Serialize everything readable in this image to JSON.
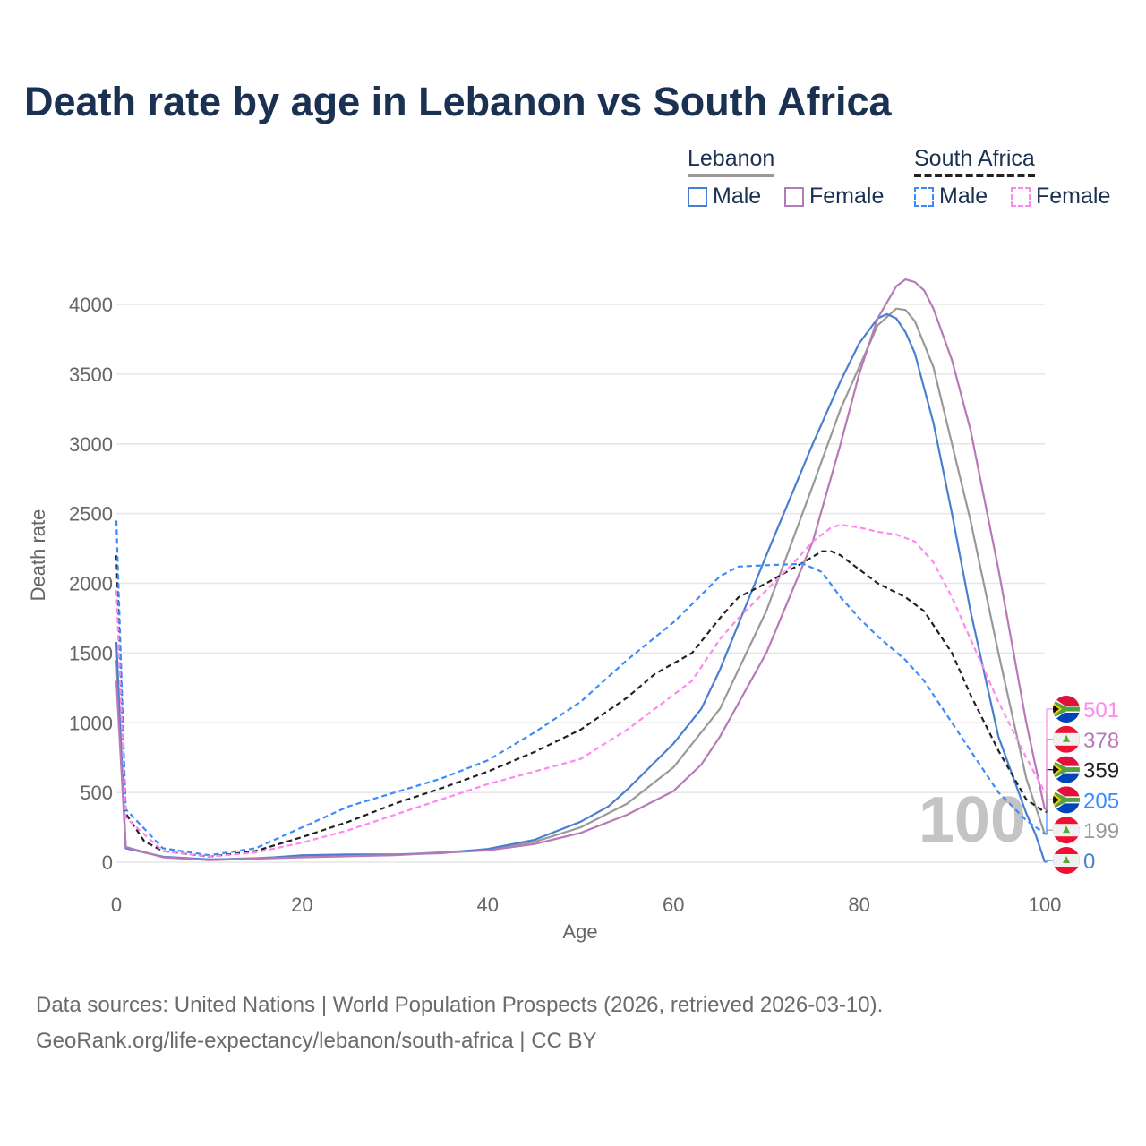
{
  "title": "Death rate by age in Lebanon vs South Africa",
  "legend": {
    "countries": [
      {
        "name": "Lebanon",
        "style": "solid",
        "color": "#999999"
      },
      {
        "name": "South Africa",
        "style": "dashed",
        "color": "#222222"
      }
    ],
    "items": [
      {
        "label": "Male",
        "country": "Lebanon",
        "color": "#4a7fd0",
        "style": "solid"
      },
      {
        "label": "Female",
        "country": "Lebanon",
        "color": "#b77ab7",
        "style": "solid"
      },
      {
        "label": "Male",
        "country": "South Africa",
        "color": "#3b8bff",
        "style": "dashed"
      },
      {
        "label": "Female",
        "country": "South Africa",
        "color": "#ff88ee",
        "style": "dashed"
      }
    ]
  },
  "footer": {
    "line1": "Data sources: United Nations | World Population Prospects (2026, retrieved 2026-03-10).",
    "line2": "GeoRank.org/life-expectancy/lebanon/south-africa | CC BY"
  },
  "chart_data": {
    "type": "line",
    "xlabel": "Age",
    "ylabel": "Death rate",
    "xlim": [
      0,
      100
    ],
    "ylim": [
      0,
      4000
    ],
    "xticks": [
      0,
      20,
      40,
      60,
      80,
      100
    ],
    "yticks": [
      0,
      500,
      1000,
      1500,
      2000,
      2500,
      3000,
      3500,
      4000
    ],
    "grid": true,
    "current_age_label": "100",
    "series": [
      {
        "name": "Lebanon Total",
        "country": "Lebanon",
        "flag": "lebanon",
        "color": "#999999",
        "dashed": false,
        "end_label": "199",
        "x": [
          0,
          1,
          5,
          10,
          20,
          30,
          40,
          45,
          50,
          55,
          60,
          65,
          70,
          75,
          78,
          80,
          82,
          84,
          85,
          86,
          88,
          90,
          92,
          95,
          98,
          100
        ],
        "y": [
          1450,
          105,
          38,
          18,
          42,
          52,
          90,
          145,
          250,
          420,
          680,
          1100,
          1800,
          2700,
          3250,
          3550,
          3850,
          3970,
          3960,
          3880,
          3550,
          3000,
          2450,
          1500,
          600,
          199
        ]
      },
      {
        "name": "Lebanon Male",
        "country": "Lebanon",
        "flag": "lebanon",
        "color": "#4a7fd0",
        "dashed": false,
        "end_label": "0",
        "x": [
          0,
          1,
          5,
          10,
          15,
          20,
          25,
          30,
          35,
          40,
          45,
          50,
          53,
          55,
          60,
          63,
          65,
          70,
          75,
          78,
          80,
          82,
          83,
          84,
          85,
          86,
          88,
          90,
          92,
          95,
          98,
          99,
          100
        ],
        "y": [
          1580,
          100,
          40,
          20,
          25,
          50,
          55,
          55,
          65,
          95,
          160,
          290,
          400,
          520,
          850,
          1100,
          1380,
          2200,
          3000,
          3450,
          3720,
          3900,
          3930,
          3900,
          3800,
          3650,
          3150,
          2500,
          1800,
          900,
          350,
          200,
          0
        ]
      },
      {
        "name": "Lebanon Female",
        "country": "Lebanon",
        "flag": "lebanon",
        "color": "#b77ab7",
        "dashed": false,
        "end_label": "378",
        "x": [
          0,
          1,
          5,
          10,
          20,
          30,
          40,
          45,
          50,
          55,
          60,
          63,
          65,
          70,
          75,
          78,
          80,
          82,
          84,
          85,
          86,
          87,
          88,
          90,
          92,
          95,
          98,
          100
        ],
        "y": [
          1300,
          110,
          35,
          15,
          35,
          50,
          85,
          130,
          210,
          340,
          510,
          700,
          900,
          1500,
          2300,
          3000,
          3500,
          3900,
          4130,
          4180,
          4160,
          4100,
          3970,
          3600,
          3100,
          2100,
          1000,
          378
        ]
      },
      {
        "name": "South Africa Total",
        "country": "South Africa",
        "flag": "south-africa",
        "color": "#222222",
        "dashed": true,
        "end_label": "359",
        "x": [
          0,
          1,
          3,
          5,
          10,
          15,
          20,
          25,
          30,
          35,
          40,
          45,
          50,
          55,
          58,
          62,
          65,
          67,
          70,
          74,
          76,
          77,
          78,
          80,
          82,
          85,
          87,
          90,
          92,
          95,
          98,
          100
        ],
        "y": [
          2200,
          350,
          150,
          80,
          40,
          80,
          180,
          290,
          420,
          530,
          650,
          790,
          950,
          1180,
          1350,
          1500,
          1750,
          1900,
          2000,
          2150,
          2230,
          2230,
          2200,
          2100,
          2000,
          1900,
          1800,
          1500,
          1200,
          800,
          450,
          359
        ]
      },
      {
        "name": "South Africa Male",
        "country": "South Africa",
        "flag": "south-africa",
        "color": "#3b8bff",
        "dashed": true,
        "end_label": "205",
        "x": [
          0,
          1,
          5,
          10,
          15,
          20,
          25,
          30,
          35,
          40,
          45,
          50,
          55,
          60,
          62,
          65,
          67,
          70,
          74,
          76,
          78,
          80,
          82,
          85,
          87,
          90,
          92,
          95,
          98,
          100
        ],
        "y": [
          2450,
          380,
          100,
          50,
          100,
          250,
          400,
          500,
          600,
          730,
          930,
          1150,
          1450,
          1720,
          1850,
          2050,
          2120,
          2130,
          2140,
          2080,
          1900,
          1750,
          1620,
          1450,
          1300,
          1000,
          800,
          500,
          300,
          205
        ]
      },
      {
        "name": "South Africa Female",
        "country": "South Africa",
        "flag": "south-africa",
        "color": "#ff88ee",
        "dashed": true,
        "end_label": "501",
        "x": [
          0,
          1,
          5,
          10,
          15,
          20,
          25,
          30,
          35,
          40,
          45,
          50,
          55,
          60,
          62,
          65,
          67,
          70,
          73,
          75,
          77,
          78,
          80,
          82,
          84,
          86,
          88,
          90,
          92,
          95,
          98,
          100
        ],
        "y": [
          1950,
          320,
          80,
          40,
          70,
          140,
          230,
          340,
          450,
          560,
          650,
          740,
          950,
          1200,
          1300,
          1600,
          1750,
          1950,
          2150,
          2300,
          2400,
          2420,
          2400,
          2370,
          2350,
          2300,
          2150,
          1900,
          1600,
          1150,
          750,
          501
        ]
      }
    ]
  }
}
